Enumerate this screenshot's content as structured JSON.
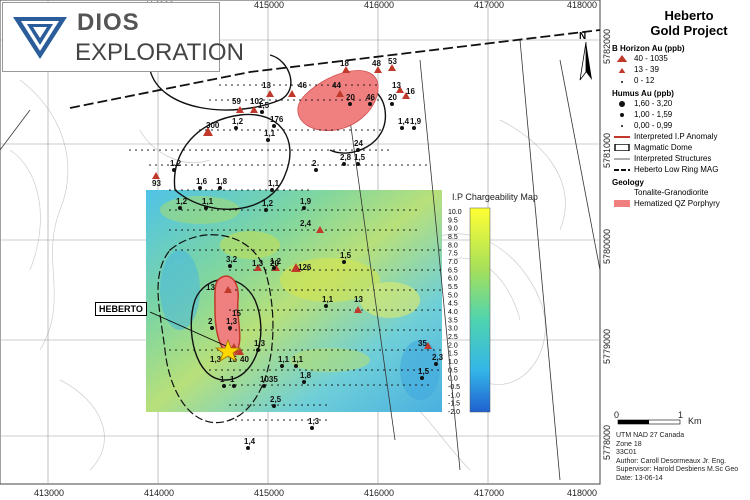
{
  "company": {
    "line1": "DIOS",
    "line2": "EXPLORATION"
  },
  "project": {
    "title_line1": "Heberto",
    "title_line2": "Gold Project"
  },
  "legend": {
    "bhorizon_title": "B Horizon Au (ppb)",
    "bhorizon_items": [
      "40 - 1035",
      "13 - 39",
      "0 - 12"
    ],
    "humus_title": "Humus Au (ppb)",
    "humus_items": [
      "1,60 - 3,20",
      "1,00 - 1,59",
      "0,00 - 0,99"
    ],
    "interp_ip": "Interpreted I.P Anomaly",
    "magnetic_dome": "Magmatic Dome",
    "interp_struct": "Interpreted Structures",
    "low_ring": "Heberto Low Ring MAG",
    "geology_title": "Geology",
    "geology_items": [
      "Tonalite-Granodiorite",
      "Hematized QZ Porphyry"
    ],
    "colors": {
      "anomaly": "#c0392b",
      "porphyry": "#f08080",
      "triangle": "#c0392b"
    }
  },
  "chargeability": {
    "title": "I.P Chargeability Map",
    "scale": [
      "10.0",
      "9.5",
      "9.0",
      "8.5",
      "8.0",
      "7.5",
      "7.0",
      "6.5",
      "6.0",
      "5.5",
      "5.0",
      "4.5",
      "4.0",
      "3.5",
      "3.0",
      "2.5",
      "2.0",
      "1.5",
      "1.0",
      "0.5",
      "0.0",
      "-0.5",
      "-1.0",
      "-1.5",
      "-2.0"
    ]
  },
  "axes": {
    "x": [
      "413000",
      "414000",
      "415000",
      "416000",
      "417000",
      "418000"
    ],
    "y": [
      "5782000",
      "5781000",
      "5780000",
      "5779000",
      "5778000"
    ]
  },
  "north": "N",
  "scale_bar": {
    "zero": "0",
    "one": "1",
    "unit": "Km"
  },
  "heberto_label": "HEBERTO",
  "samples": {
    "triangles": [
      "18",
      "48",
      "53",
      "13",
      "16",
      "13",
      "46",
      "44",
      "59",
      "102",
      "300",
      "93",
      "126",
      "2,4",
      "13",
      "13",
      "1,3",
      "15",
      "40",
      "35",
      "15",
      "1,3",
      "20",
      "1,2"
    ],
    "values": [
      "1,5",
      "20",
      "46",
      "20",
      "176",
      "1,2",
      "1,4",
      "1,9",
      "24",
      "2,8",
      "1,5",
      "2",
      "1,2",
      "1,1",
      "1,6",
      "1,8",
      "1,1",
      "1,2",
      "1,1",
      "1,2",
      "1,9",
      "3,2",
      "1,2",
      "1,5",
      "1,1",
      "2",
      "1,3",
      "1,1",
      "1,1",
      "1,3",
      "1,8",
      "1",
      "1035",
      "2,5",
      "1,3",
      "1,4",
      "2,3",
      "1,5",
      "1"
    ]
  },
  "footer": {
    "datum": "UTM NAD 27 Canada",
    "zone": "Zone 18",
    "sheet": "33C01",
    "author": "Author: Caroll Desormeaux Jr. Eng.",
    "supervisor": "Supervisor: Harold Desbiens M.Sc Geo",
    "date": "Date: 13-06-14"
  }
}
